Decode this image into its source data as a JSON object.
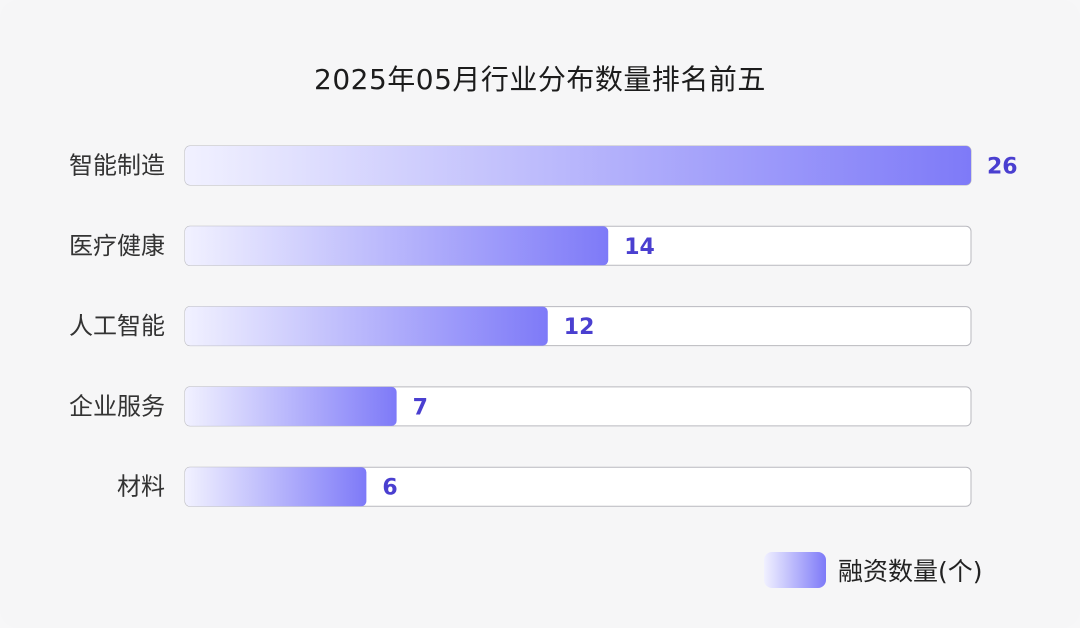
{
  "chart_data": {
    "type": "bar",
    "orientation": "horizontal",
    "title": "2025年05月行业分布数量排名前五",
    "categories": [
      "智能制造",
      "医疗健康",
      "人工智能",
      "企业服务",
      "材料"
    ],
    "series": [
      {
        "name": "融资数量(个)",
        "values": [
          26,
          14,
          12,
          7,
          6
        ]
      }
    ],
    "xlim": [
      0,
      26
    ],
    "grid": false,
    "legend_position": "bottom-right",
    "colors": {
      "bar_start": "#f1f1ff",
      "bar_end": "#7e7af8",
      "value_label": "#4a3fd0",
      "track": "#ffffff",
      "track_border": "#b9b9bf"
    }
  }
}
